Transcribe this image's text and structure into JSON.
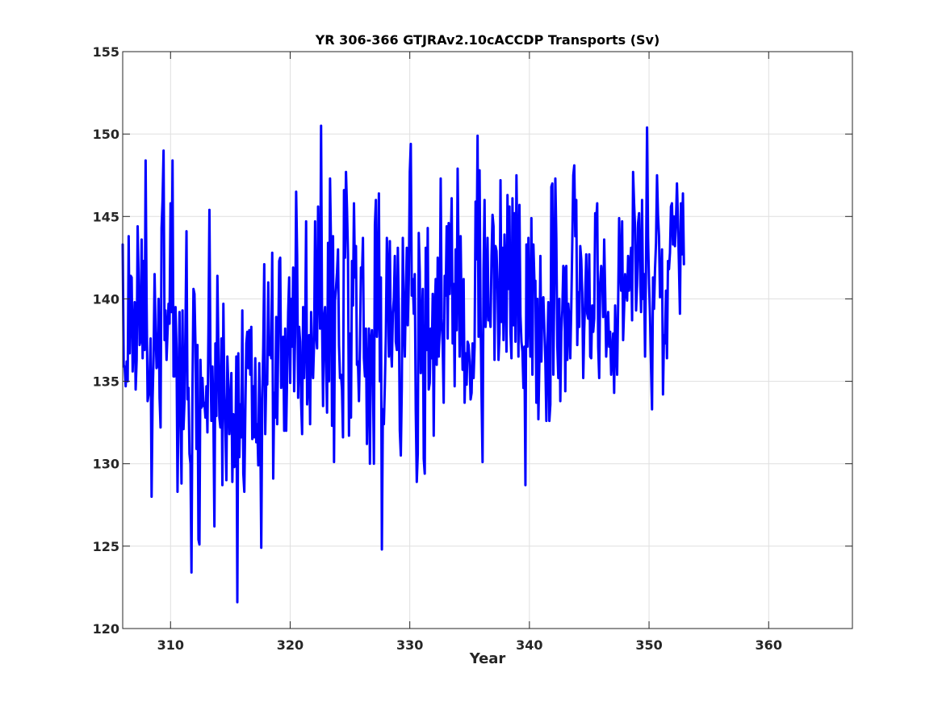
{
  "chart_data": {
    "type": "line",
    "title": "YR 306-366 GTJRAv2.10cACCDP Transports (Sv)",
    "xlabel": "Year",
    "ylabel": "",
    "xlim": [
      306,
      367
    ],
    "ylim": [
      120,
      155
    ],
    "xticks": [
      310,
      320,
      330,
      340,
      350,
      360
    ],
    "yticks": [
      120,
      125,
      130,
      135,
      140,
      145,
      150,
      155
    ],
    "grid": true,
    "legend": "none",
    "series": [
      {
        "color": "#0000ff",
        "x_start": 306.0,
        "x_step": 0.0833333,
        "values": [
          143.3,
          136.0,
          135.8,
          134.7,
          136.2,
          135.0,
          143.8,
          136.7,
          141.4,
          141.3,
          135.6,
          137.8,
          139.8,
          134.5,
          136.3,
          144.4,
          141.2,
          137.2,
          137.5,
          143.6,
          136.4,
          142.3,
          136.9,
          148.4,
          139.7,
          133.8,
          134.2,
          135.3,
          137.6,
          128.0,
          133.9,
          136.6,
          141.5,
          138.0,
          135.8,
          136.0,
          140.0,
          134.0,
          132.2,
          144.3,
          146.0,
          149.0,
          137.5,
          139.3,
          136.3,
          138.0,
          139.7,
          138.5,
          145.8,
          139.2,
          148.4,
          135.3,
          135.3,
          139.5,
          137.0,
          128.3,
          133.7,
          139.2,
          133.0,
          128.8,
          139.3,
          132.1,
          133.8,
          138.3,
          144.1,
          133.9,
          134.6,
          130.6,
          130.0,
          123.4,
          134.5,
          140.6,
          140.3,
          137.2,
          130.9,
          137.2,
          125.4,
          125.1,
          136.3,
          133.4,
          135.2,
          133.5,
          133.7,
          132.8,
          134.7,
          131.9,
          138.0,
          145.4,
          136.6,
          132.6,
          135.9,
          132.9,
          126.2,
          137.3,
          132.9,
          141.4,
          137.0,
          132.8,
          132.2,
          137.6,
          128.7,
          139.7,
          134.3,
          132.3,
          129.0,
          136.5,
          134.7,
          131.8,
          133.5,
          135.5,
          128.9,
          133.0,
          129.8,
          130.8,
          136.5,
          121.6,
          136.7,
          130.4,
          133.6,
          131.6,
          139.3,
          129.4,
          128.3,
          133.1,
          137.3,
          138.0,
          135.8,
          138.1,
          135.4,
          138.3,
          131.5,
          134.7,
          131.6,
          136.4,
          131.3,
          132.4,
          129.9,
          136.1,
          132.4,
          124.9,
          133.9,
          137.1,
          142.1,
          131.8,
          135.2,
          134.8,
          141.0,
          136.6,
          137.6,
          136.4,
          142.8,
          129.1,
          134.3,
          132.8,
          138.9,
          132.4,
          137.3,
          142.3,
          142.5,
          134.6,
          135.6,
          137.7,
          132.0,
          138.2,
          132.0,
          135.5,
          139.2,
          141.3,
          134.9,
          140.0,
          137.1,
          141.9,
          134.4,
          137.9,
          146.5,
          142.6,
          134.0,
          138.3,
          137.4,
          133.7,
          131.8,
          139.5,
          135.2,
          137.9,
          144.7,
          133.6,
          135.1,
          137.8,
          132.4,
          139.2,
          136.6,
          135.2,
          137.3,
          144.7,
          137.9,
          137.0,
          145.6,
          140.9,
          138.2,
          150.5,
          138.7,
          133.5,
          138.9,
          139.5,
          136.1,
          133.1,
          143.4,
          135.0,
          147.3,
          143.1,
          132.3,
          143.8,
          130.1,
          139.9,
          140.7,
          141.6,
          143.0,
          137.2,
          135.2,
          135.4,
          134.5,
          131.6,
          146.6,
          142.5,
          147.7,
          145.5,
          142.7,
          131.7,
          137.9,
          132.8,
          142.3,
          139.6,
          145.8,
          141.3,
          143.2,
          136.0,
          136.2,
          133.8,
          137.0,
          141.9,
          141.3,
          143.7,
          136.4,
          135.3,
          138.2,
          131.2,
          135.1,
          138.2,
          130.0,
          137.5,
          138.1,
          135.3,
          130.0,
          144.5,
          146.0,
          137.7,
          139.3,
          146.4,
          135.0,
          141.3,
          124.8,
          133.3,
          132.4,
          134.8,
          137.8,
          143.7,
          141.6,
          136.5,
          143.5,
          137.2,
          135.9,
          139.1,
          140.0,
          142.6,
          137.4,
          136.9,
          143.1,
          139.4,
          132.0,
          130.5,
          134.7,
          143.7,
          138.8,
          136.5,
          140.1,
          143.1,
          138.4,
          141.2,
          147.7,
          149.4,
          140.2,
          141.2,
          139.1,
          141.5,
          133.2,
          128.9,
          130.6,
          144.0,
          141.6,
          135.5,
          138.2,
          140.6,
          130.3,
          129.4,
          143.1,
          136.9,
          144.3,
          134.5,
          134.9,
          138.2,
          136.4,
          140.3,
          131.7,
          139.2,
          141.2,
          136.0,
          142.5,
          136.5,
          138.1,
          147.3,
          138.8,
          137.2,
          133.7,
          141.4,
          140.2,
          144.4,
          137.6,
          144.6,
          140.3,
          143.1,
          146.1,
          137.3,
          140.9,
          134.7,
          143.0,
          138.1,
          147.9,
          142.1,
          136.5,
          143.8,
          138.9,
          135.7,
          141.2,
          133.7,
          136.7,
          134.8,
          137.4,
          137.2,
          136.2,
          133.9,
          134.3,
          137.3,
          135.2,
          137.1,
          145.9,
          142.4,
          149.9,
          137.7,
          147.8,
          138.9,
          134.1,
          130.1,
          141.8,
          146.0,
          138.3,
          139.5,
          143.7,
          138.7,
          139.0,
          138.3,
          142.6,
          145.1,
          144.4,
          136.3,
          143.2,
          142.9,
          141.0,
          136.3,
          137.9,
          147.2,
          138.6,
          143.1,
          137.5,
          143.9,
          141.3,
          136.8,
          146.3,
          140.6,
          145.6,
          138.0,
          136.4,
          146.1,
          138.4,
          145.2,
          137.4,
          147.5,
          142.7,
          136.5,
          145.7,
          139.0,
          137.4,
          136.8,
          134.6,
          137.1,
          128.7,
          143.3,
          137.1,
          143.7,
          139.1,
          136.5,
          144.9,
          135.4,
          143.3,
          141.1,
          141.1,
          133.7,
          140.0,
          132.7,
          136.2,
          142.6,
          136.2,
          139.9,
          140.1,
          138.2,
          136.2,
          132.6,
          137.2,
          139.8,
          132.6,
          133.6,
          146.8,
          147.0,
          135.4,
          141.0,
          147.3,
          143.7,
          137.1,
          135.2,
          140.0,
          133.8,
          138.0,
          139.3,
          142.0,
          141.8,
          134.4,
          142.0,
          136.3,
          139.7,
          138.8,
          136.4,
          139.5,
          143.4,
          147.5,
          148.1,
          143.8,
          146.0,
          137.2,
          140.4,
          138.3,
          143.2,
          142.4,
          140.4,
          135.2,
          138.2,
          140.2,
          142.7,
          139.1,
          138.8,
          142.7,
          136.5,
          136.4,
          139.6,
          138.0,
          138.8,
          145.2,
          144.7,
          145.8,
          137.1,
          135.2,
          141.0,
          142.0,
          141.3,
          138.9,
          143.6,
          140.4,
          136.5,
          138.0,
          139.2,
          137.1,
          138.0,
          135.4,
          136.7,
          137.9,
          134.3,
          139.6,
          137.2,
          135.4,
          139.7,
          144.9,
          142.0,
          140.5,
          144.7,
          137.5,
          139.4,
          141.5,
          140.5,
          139.9,
          142.6,
          140.5,
          141.9,
          143.1,
          138.7,
          147.7,
          145.8,
          144.3,
          139.3,
          140.8,
          144.6,
          145.2,
          141.8,
          139.2,
          146.0,
          140.0,
          141.5,
          136.5,
          142.1,
          150.4,
          143.8,
          140.9,
          138.9,
          135.9,
          133.3,
          141.3,
          139.4,
          141.8,
          143.4,
          147.5,
          145.1,
          143.8,
          140.1,
          140.3,
          143.0,
          134.2,
          137.8,
          137.3,
          140.5,
          136.4,
          142.3,
          141.8,
          142.8,
          145.6,
          145.8,
          143.3,
          145.0,
          143.2,
          144.7,
          147.0,
          144.8,
          142.1,
          139.1,
          145.8,
          142.7,
          146.4,
          142.1
        ]
      }
    ]
  }
}
